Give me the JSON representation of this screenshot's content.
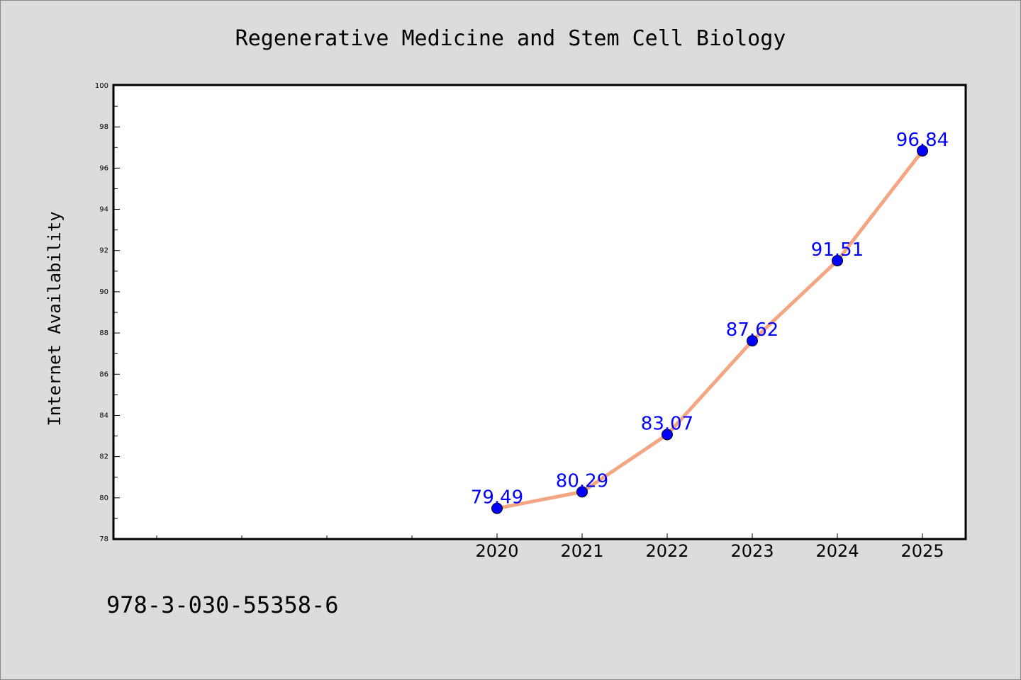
{
  "chart_data": {
    "type": "line",
    "title": "Regenerative Medicine and Stem Cell Biology",
    "ylabel": "Internet Availability",
    "xlabel": "",
    "x_range": [
      2015.5,
      2025.5
    ],
    "ylim": [
      78,
      100
    ],
    "y_ticks": [
      78,
      80,
      82,
      84,
      86,
      88,
      90,
      92,
      94,
      96,
      98,
      100
    ],
    "x_minor_ticks": [
      2016,
      2017,
      2018,
      2019
    ],
    "grid": false,
    "series": [
      {
        "x": [
          "2020",
          "2021",
          "2022",
          "2023",
          "2024",
          "2025"
        ],
        "values": [
          79.49,
          80.29,
          83.07,
          87.62,
          91.51,
          96.84
        ],
        "labels": [
          "79.49",
          "80.29",
          "83.07",
          "87.62",
          "91.51",
          "96.84"
        ],
        "line_color": "#f4a582",
        "marker_color": "#0000ff",
        "label_color": "#0000ff"
      }
    ]
  },
  "footer": {
    "isbn": "978-3-030-55358-6"
  }
}
